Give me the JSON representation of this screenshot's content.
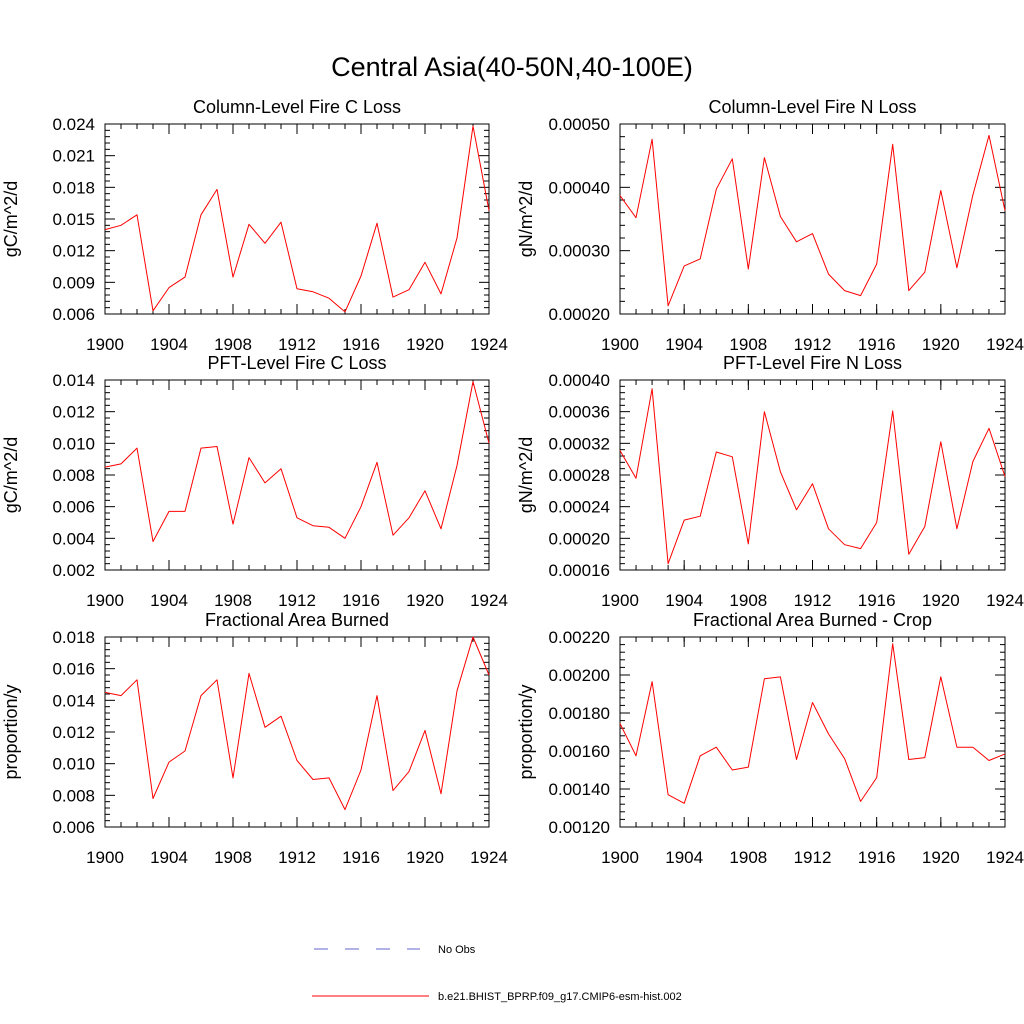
{
  "figure": {
    "title": "Central Asia(40-50N,40-100E)"
  },
  "legend": {
    "entries": [
      {
        "label": "No Obs",
        "color": "#6666cc",
        "style": "dashed"
      },
      {
        "label": "b.e21.BHIST_BPRP.f09_g17.CMIP6-esm-hist.002",
        "color": "#ff0000",
        "style": "solid"
      }
    ]
  },
  "chart_data": [
    {
      "type": "line",
      "title": "Column-Level Fire C Loss",
      "xlabel": "",
      "ylabel": "gC/m^2/d",
      "xlim": [
        1900,
        1924
      ],
      "ylim": [
        0.006,
        0.024
      ],
      "xticks": [
        "1900",
        "1904",
        "1908",
        "1912",
        "1916",
        "1920",
        "1924"
      ],
      "yticks": [
        "0.006",
        "0.009",
        "0.012",
        "0.015",
        "0.018",
        "0.021",
        "0.024"
      ],
      "x": [
        1900,
        1901,
        1902,
        1903,
        1904,
        1905,
        1906,
        1907,
        1908,
        1909,
        1910,
        1911,
        1912,
        1913,
        1914,
        1915,
        1916,
        1917,
        1918,
        1919,
        1920,
        1921,
        1922,
        1923,
        1924
      ],
      "series": [
        {
          "color": "#ff0000",
          "values": [
            0.014,
            0.0144,
            0.0154,
            0.0063,
            0.0085,
            0.0095,
            0.0154,
            0.0178,
            0.0095,
            0.0145,
            0.0127,
            0.0147,
            0.0084,
            0.0081,
            0.0075,
            0.0062,
            0.0096,
            0.0146,
            0.0076,
            0.0083,
            0.0109,
            0.0079,
            0.0132,
            0.0238,
            0.0158
          ]
        }
      ]
    },
    {
      "type": "line",
      "title": "Column-Level Fire N Loss",
      "xlabel": "",
      "ylabel": "gN/m^2/d",
      "xlim": [
        1900,
        1924
      ],
      "ylim": [
        0.0002,
        0.0005
      ],
      "xticks": [
        "1900",
        "1904",
        "1908",
        "1912",
        "1916",
        "1920",
        "1924"
      ],
      "yticks": [
        "0.00020",
        "0.00030",
        "0.00040",
        "0.00050"
      ],
      "x": [
        1900,
        1901,
        1902,
        1903,
        1904,
        1905,
        1906,
        1907,
        1908,
        1909,
        1910,
        1911,
        1912,
        1913,
        1914,
        1915,
        1916,
        1917,
        1918,
        1919,
        1920,
        1921,
        1922,
        1923,
        1924
      ],
      "series": [
        {
          "color": "#ff0000",
          "values": [
            0.000387,
            0.000352,
            0.000476,
            0.000213,
            0.000276,
            0.000287,
            0.000397,
            0.000445,
            0.000271,
            0.000447,
            0.000354,
            0.000314,
            0.000327,
            0.000263,
            0.000237,
            0.000229,
            0.000279,
            0.000468,
            0.000237,
            0.000266,
            0.000395,
            0.000273,
            0.000388,
            0.000482,
            0.000363
          ]
        }
      ]
    },
    {
      "type": "line",
      "title": "PFT-Level Fire C Loss",
      "xlabel": "",
      "ylabel": "gC/m^2/d",
      "xlim": [
        1900,
        1924
      ],
      "ylim": [
        0.002,
        0.014
      ],
      "xticks": [
        "1900",
        "1904",
        "1908",
        "1912",
        "1916",
        "1920",
        "1924"
      ],
      "yticks": [
        "0.002",
        "0.004",
        "0.006",
        "0.008",
        "0.010",
        "0.012",
        "0.014"
      ],
      "x": [
        1900,
        1901,
        1902,
        1903,
        1904,
        1905,
        1906,
        1907,
        1908,
        1909,
        1910,
        1911,
        1912,
        1913,
        1914,
        1915,
        1916,
        1917,
        1918,
        1919,
        1920,
        1921,
        1922,
        1923,
        1924
      ],
      "series": [
        {
          "color": "#ff0000",
          "values": [
            0.0085,
            0.0087,
            0.0097,
            0.0038,
            0.0057,
            0.0057,
            0.0097,
            0.0098,
            0.0049,
            0.0091,
            0.0075,
            0.0084,
            0.0053,
            0.0048,
            0.0047,
            0.004,
            0.006,
            0.0088,
            0.0042,
            0.0053,
            0.007,
            0.0046,
            0.0086,
            0.0139,
            0.01
          ]
        }
      ]
    },
    {
      "type": "line",
      "title": "PFT-Level Fire N Loss",
      "xlabel": "",
      "ylabel": "gN/m^2/d",
      "xlim": [
        1900,
        1924
      ],
      "ylim": [
        0.00016,
        0.0004
      ],
      "xticks": [
        "1900",
        "1904",
        "1908",
        "1912",
        "1916",
        "1920",
        "1924"
      ],
      "yticks": [
        "0.00016",
        "0.00020",
        "0.00024",
        "0.00028",
        "0.00032",
        "0.00036",
        "0.00040"
      ],
      "x": [
        1900,
        1901,
        1902,
        1903,
        1904,
        1905,
        1906,
        1907,
        1908,
        1909,
        1910,
        1911,
        1912,
        1913,
        1914,
        1915,
        1916,
        1917,
        1918,
        1919,
        1920,
        1921,
        1922,
        1923,
        1924
      ],
      "series": [
        {
          "color": "#ff0000",
          "values": [
            0.000311,
            0.000276,
            0.000389,
            0.000168,
            0.000223,
            0.000228,
            0.000309,
            0.000303,
            0.000193,
            0.00036,
            0.000284,
            0.000236,
            0.000269,
            0.000212,
            0.000192,
            0.000187,
            0.00022,
            0.000361,
            0.00018,
            0.000215,
            0.000322,
            0.000212,
            0.000297,
            0.000339,
            0.000278
          ]
        }
      ]
    },
    {
      "type": "line",
      "title": "Fractional Area Burned",
      "xlabel": "",
      "ylabel": "proportion/y",
      "xlim": [
        1900,
        1924
      ],
      "ylim": [
        0.006,
        0.018
      ],
      "xticks": [
        "1900",
        "1904",
        "1908",
        "1912",
        "1916",
        "1920",
        "1924"
      ],
      "yticks": [
        "0.006",
        "0.008",
        "0.010",
        "0.012",
        "0.014",
        "0.016",
        "0.018"
      ],
      "x": [
        1900,
        1901,
        1902,
        1903,
        1904,
        1905,
        1906,
        1907,
        1908,
        1909,
        1910,
        1911,
        1912,
        1913,
        1914,
        1915,
        1916,
        1917,
        1918,
        1919,
        1920,
        1921,
        1922,
        1923,
        1924
      ],
      "series": [
        {
          "color": "#ff0000",
          "values": [
            0.0145,
            0.0143,
            0.0153,
            0.0078,
            0.0101,
            0.0108,
            0.0143,
            0.0153,
            0.0091,
            0.0157,
            0.0123,
            0.013,
            0.0102,
            0.009,
            0.0091,
            0.0071,
            0.0096,
            0.0143,
            0.0083,
            0.0095,
            0.0121,
            0.0081,
            0.0146,
            0.018,
            0.0156
          ]
        }
      ]
    },
    {
      "type": "line",
      "title": "Fractional Area Burned - Crop",
      "xlabel": "",
      "ylabel": "proportion/y",
      "xlim": [
        1900,
        1924
      ],
      "ylim": [
        0.0012,
        0.0022
      ],
      "xticks": [
        "1900",
        "1904",
        "1908",
        "1912",
        "1916",
        "1920",
        "1924"
      ],
      "yticks": [
        "0.00120",
        "0.00140",
        "0.00160",
        "0.00180",
        "0.00200",
        "0.00220"
      ],
      "x": [
        1900,
        1901,
        1902,
        1903,
        1904,
        1905,
        1906,
        1907,
        1908,
        1909,
        1910,
        1911,
        1912,
        1913,
        1914,
        1915,
        1916,
        1917,
        1918,
        1919,
        1920,
        1921,
        1922,
        1923,
        1924
      ],
      "series": [
        {
          "color": "#ff0000",
          "values": [
            0.001745,
            0.001575,
            0.001965,
            0.00137,
            0.001325,
            0.001575,
            0.00162,
            0.0015,
            0.001515,
            0.00198,
            0.00199,
            0.001555,
            0.001855,
            0.00169,
            0.00156,
            0.001335,
            0.00146,
            0.002165,
            0.001555,
            0.001565,
            0.00199,
            0.00162,
            0.00162,
            0.00155,
            0.001585
          ]
        }
      ]
    }
  ]
}
